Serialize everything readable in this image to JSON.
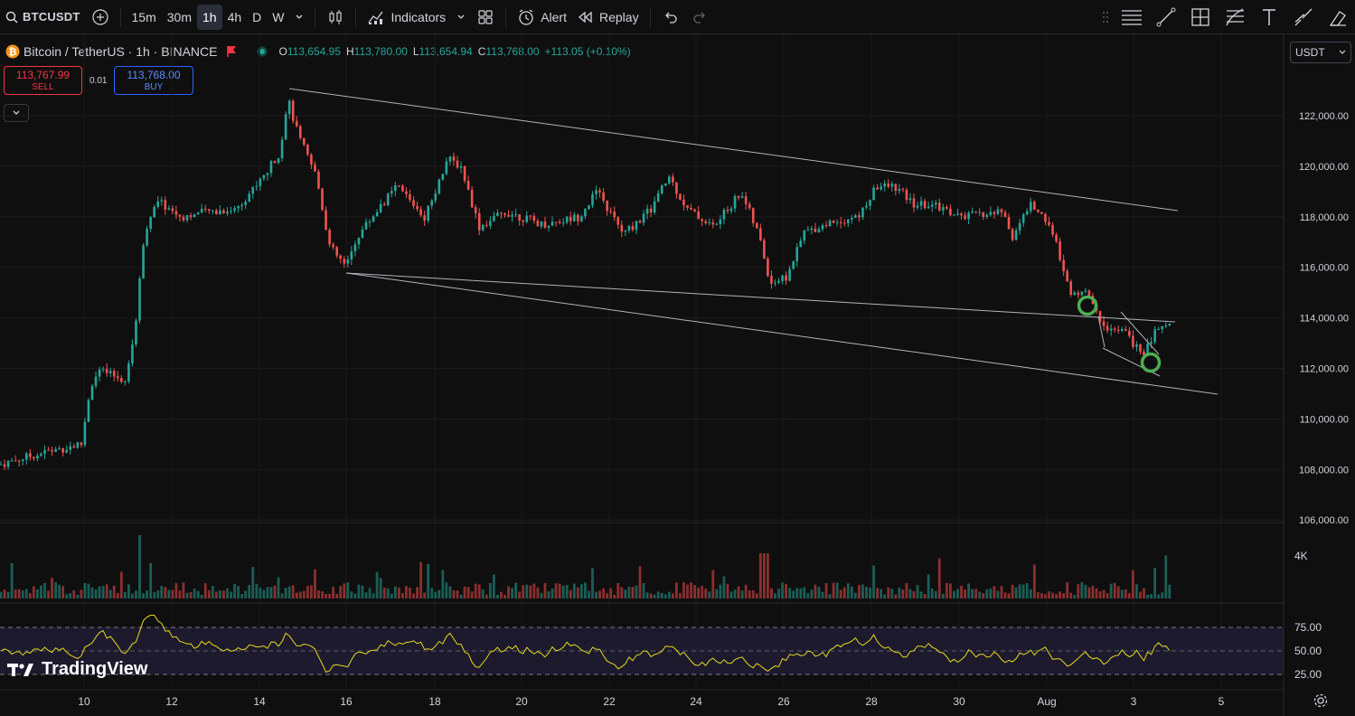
{
  "toolbar": {
    "symbol": "BTCUSDT",
    "intervals": [
      "15m",
      "30m",
      "1h",
      "4h",
      "D",
      "W"
    ],
    "active_interval": "1h",
    "indicators_label": "Indicators",
    "alert_label": "Alert",
    "replay_label": "Replay"
  },
  "legend": {
    "title": "Bitcoin / TetherUS · 1h · BINANCE",
    "open_key": "O",
    "open": "113,654.95",
    "high_key": "H",
    "high": "113,780.00",
    "low_key": "L",
    "low": "113,654.94",
    "close_key": "C",
    "close": "113,768.00",
    "change": "+113.05 (+0.10%)"
  },
  "trade": {
    "sell_price": "113,767.99",
    "sell_label": "SELL",
    "buy_price": "113,768.00",
    "buy_label": "BUY",
    "spread": "0.01"
  },
  "currency": "USDT",
  "price_axis": {
    "labels": [
      "122,000.00",
      "120,000.00",
      "118,000.00",
      "116,000.00",
      "114,000.00",
      "112,000.00",
      "110,000.00",
      "108,000.00",
      "106,000.00"
    ]
  },
  "volume_axis": {
    "label": "4K"
  },
  "rsi_axis": {
    "labels": [
      "75.00",
      "50.00",
      "25.00"
    ]
  },
  "time_axis": {
    "labels": [
      "10",
      "12",
      "14",
      "16",
      "18",
      "20",
      "22",
      "24",
      "26",
      "28",
      "30",
      "Aug",
      "3",
      "5"
    ]
  },
  "watermark": "TradingView",
  "colors": {
    "up": "#26a69a",
    "down": "#ef5350",
    "rsi": "#e5d91b",
    "marker": "#4caf50"
  },
  "icons": [
    "search-icon",
    "add-symbol-icon",
    "candles-icon",
    "indicators-icon",
    "layout-icon",
    "alert-icon",
    "replay-icon",
    "undo-icon",
    "redo-icon",
    "flag-icon",
    "gear-icon"
  ]
}
